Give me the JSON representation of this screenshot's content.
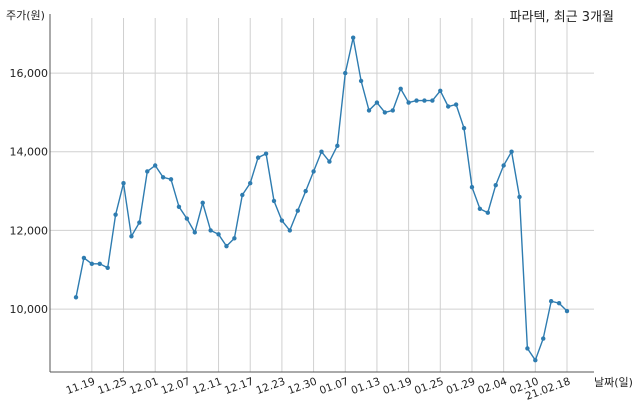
{
  "chart_data": {
    "type": "line",
    "title": "파라텍, 최근 3개월",
    "ylabel": "주가(원)",
    "xlabel": "날짜(일)",
    "ylim": [
      8400,
      17400
    ],
    "yticks": [
      10000,
      12000,
      14000,
      16000
    ],
    "ytick_labels": [
      "10,000",
      "12,000",
      "14,000",
      "16,000"
    ],
    "xtick_labels": [
      "11.19",
      "11.25",
      "12.01",
      "12.07",
      "12.11",
      "12.17",
      "12.23",
      "12.30",
      "01.07",
      "01.13",
      "01.19",
      "01.25",
      "01.29",
      "02.04",
      "02.10",
      "21.02.18"
    ],
    "xtick_indices": [
      2,
      6,
      10,
      14,
      18,
      22,
      26,
      30,
      34,
      38,
      42,
      46,
      50,
      54,
      58,
      62
    ],
    "grid": true,
    "line_color": "#2e7cb0",
    "series": [
      {
        "values": [
          10300,
          11300,
          11150,
          11150,
          11050,
          12400,
          13200,
          11850,
          12200,
          13500,
          13650,
          13350,
          13300,
          12600,
          12300,
          11950,
          12700,
          12000,
          11900,
          11600,
          11800,
          12900,
          13200,
          13850,
          13950,
          12750,
          12250,
          12000,
          12500,
          13000,
          13500,
          14000,
          13750,
          14150,
          16000,
          16900,
          15800,
          15050,
          15250,
          15000,
          15050,
          15600,
          15250,
          15300,
          15300,
          15300,
          15550,
          15150,
          15200,
          14600,
          13100,
          12550,
          12450,
          13150,
          13650,
          14000,
          12850,
          9000,
          8700,
          9250,
          10200,
          10150,
          9950
        ]
      }
    ]
  }
}
